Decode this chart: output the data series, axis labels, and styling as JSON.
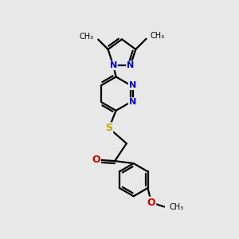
{
  "background_color": "#e8e8e8",
  "bond_color": "#000000",
  "N_color": "#0000cc",
  "O_color": "#cc0000",
  "S_color": "#bbaa00",
  "line_width": 1.6,
  "fig_bg": "#e8e8e8",
  "xlim": [
    0,
    10
  ],
  "ylim": [
    0,
    10
  ]
}
